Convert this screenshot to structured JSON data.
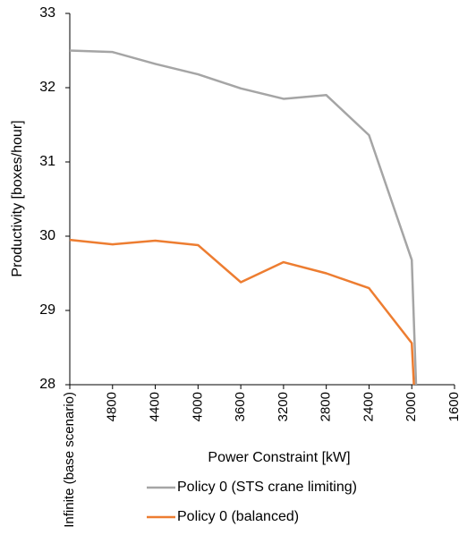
{
  "chart_data": {
    "type": "line",
    "x_label": "Power Constraint [kW]",
    "y_label": "Productivity [boxes/hour]",
    "xlim": [
      5200,
      1600
    ],
    "xticks": [
      {
        "value": 5200,
        "label": "Infinite (base scenario)"
      },
      4800,
      4400,
      4000,
      3600,
      3200,
      2800,
      2400,
      2000,
      1600
    ],
    "ylim": [
      28,
      33
    ],
    "yticks": [
      28,
      29,
      30,
      31,
      32,
      33
    ],
    "grid": false,
    "legend": "bottom",
    "series": [
      {
        "name": "Policy 0 (STS crane limiting)",
        "color": "#a5a5a5",
        "x": [
          5200,
          4800,
          4400,
          4000,
          3600,
          3200,
          2800,
          2400,
          2000,
          1960
        ],
        "values": [
          32.5,
          32.48,
          32.32,
          32.18,
          31.99,
          31.85,
          31.9,
          31.36,
          29.68,
          28
        ]
      },
      {
        "name": "Policy 0 (balanced)",
        "color": "#ed7d31",
        "x": [
          5200,
          4800,
          4400,
          4000,
          3600,
          3200,
          2800,
          2400,
          2000,
          1980
        ],
        "values": [
          29.95,
          29.89,
          29.94,
          29.88,
          29.38,
          29.65,
          29.5,
          29.3,
          28.56,
          28
        ]
      }
    ]
  }
}
